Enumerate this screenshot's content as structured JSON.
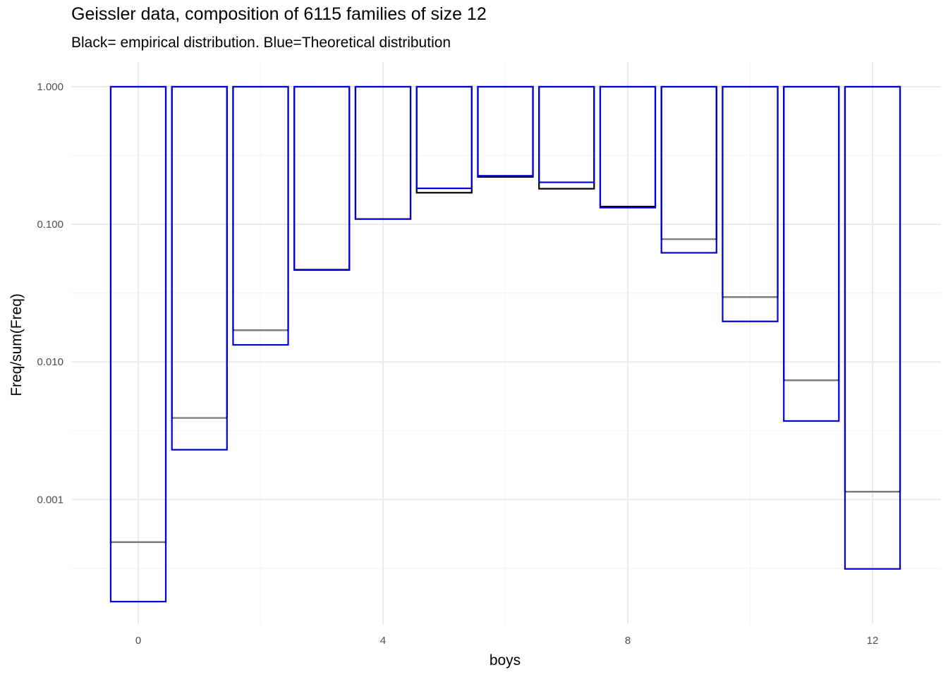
{
  "chart_data": {
    "type": "bar",
    "title": "Geissler data, composition of 6115 families of size 12",
    "subtitle": "Black= empirical distribution. Blue=Theoretical distribution",
    "xlabel": "boys",
    "ylabel": "Freq/sum(Freq)",
    "y_scale": "log10",
    "ylim": [
      0.00012,
      1.0
    ],
    "xlim": [
      -0.5,
      12.5
    ],
    "x_ticks": [
      0,
      4,
      8,
      12
    ],
    "x_tick_labels": [
      "0",
      "4",
      "8",
      "12"
    ],
    "y_ticks": [
      0.001,
      0.01,
      0.1,
      1
    ],
    "y_tick_labels": [
      "0.001",
      "0.010",
      "0.100",
      "1.000"
    ],
    "bar_top": 1.0,
    "categories": [
      0,
      1,
      2,
      3,
      4,
      5,
      6,
      7,
      8,
      9,
      10,
      11,
      12
    ],
    "grid": true,
    "series": [
      {
        "name": "Black= empirical distribution",
        "color": "#000000",
        "values": [
          0.00049,
          0.00392,
          0.017,
          0.0468,
          0.1093,
          0.1697,
          0.221,
          0.1814,
          0.1346,
          0.0781,
          0.0296,
          0.00736,
          0.00114
        ]
      },
      {
        "name": "Blue=Theoretical distribution",
        "color": "#0000dd",
        "values": [
          0.000181,
          0.0023,
          0.0133,
          0.0465,
          0.1093,
          0.1826,
          0.2253,
          0.202,
          0.1322,
          0.0621,
          0.0197,
          0.00372,
          0.000313
        ]
      }
    ],
    "colors": {
      "background": "#ffffff",
      "grid_major": "#ebebeb",
      "grid_minor": "#f5f5f5",
      "blue": "#0000dd",
      "black": "#000000",
      "gray": "#808080"
    }
  }
}
